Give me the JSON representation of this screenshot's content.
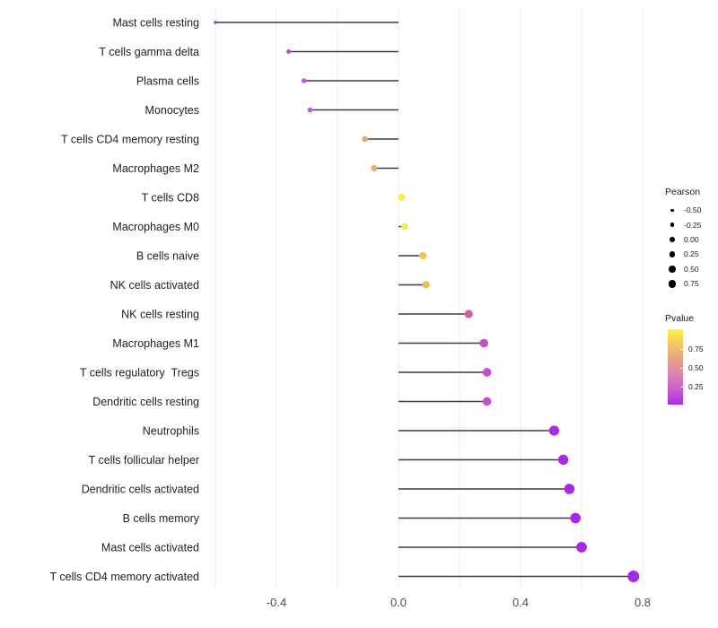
{
  "chart_data": {
    "type": "scatter",
    "variant": "lollipop",
    "title": "",
    "xlabel": "",
    "ylabel": "",
    "xlim": [
      -0.63,
      0.85
    ],
    "x_ticks": [
      -0.4,
      0.0,
      0.4,
      0.8
    ],
    "x_tick_labels": [
      "-0.4",
      "0.0",
      "0.4",
      "0.8"
    ],
    "gridline_positions": [
      -0.6,
      -0.4,
      -0.2,
      0.0,
      0.2,
      0.4,
      0.6,
      0.8
    ],
    "grid": "vertical-only",
    "legend_position": "right",
    "size_encoding": "Pearson correlation",
    "color_encoding": "Pvalue",
    "points": [
      {
        "label": "Mast cells resting",
        "pearson": -0.6,
        "color": "#A12BE8"
      },
      {
        "label": "T cells gamma delta",
        "pearson": -0.36,
        "color": "#B54FD2"
      },
      {
        "label": "Plasma cells",
        "pearson": -0.31,
        "color": "#BC55D6"
      },
      {
        "label": "Monocytes",
        "pearson": -0.29,
        "color": "#C05BD4"
      },
      {
        "label": "T cells CD4 memory resting",
        "pearson": -0.11,
        "color": "#E9A873"
      },
      {
        "label": "Macrophages M2",
        "pearson": -0.08,
        "color": "#EAAC72"
      },
      {
        "label": "T cells CD8",
        "pearson": 0.01,
        "color": "#F6EF3B"
      },
      {
        "label": "Macrophages M0",
        "pearson": 0.02,
        "color": "#F5EE3C"
      },
      {
        "label": "B cells naive",
        "pearson": 0.08,
        "color": "#EFC259"
      },
      {
        "label": "NK cells activated",
        "pearson": 0.09,
        "color": "#EFBD55"
      },
      {
        "label": "NK cells resting",
        "pearson": 0.23,
        "color": "#CB5FA2"
      },
      {
        "label": "Macrophages M1",
        "pearson": 0.28,
        "color": "#C450C9"
      },
      {
        "label": "T cells regulatory  Tregs",
        "pearson": 0.29,
        "color": "#C450C9"
      },
      {
        "label": "Dendritic cells resting",
        "pearson": 0.29,
        "color": "#C450C9"
      },
      {
        "label": "Neutrophils",
        "pearson": 0.51,
        "color": "#A62BE8"
      },
      {
        "label": "T cells follicular helper",
        "pearson": 0.54,
        "color": "#A62BE8"
      },
      {
        "label": "Dendritic cells activated",
        "pearson": 0.56,
        "color": "#A62BE8"
      },
      {
        "label": "B cells memory",
        "pearson": 0.58,
        "color": "#A62BE8"
      },
      {
        "label": "Mast cells activated",
        "pearson": 0.6,
        "color": "#A62BE8"
      },
      {
        "label": "T cells CD4 memory activated",
        "pearson": 0.77,
        "color": "#A62BE8"
      }
    ]
  },
  "legend_pearson": {
    "title": "Pearson",
    "entries": [
      {
        "label": "-0.50",
        "value": -0.5
      },
      {
        "label": "-0.25",
        "value": -0.25
      },
      {
        "label": "0.00",
        "value": 0.0
      },
      {
        "label": "0.25",
        "value": 0.25
      },
      {
        "label": "0.50",
        "value": 0.5
      },
      {
        "label": "0.75",
        "value": 0.75
      }
    ]
  },
  "legend_pvalue": {
    "title": "Pvalue",
    "tick_labels": [
      "0.75",
      "0.50",
      "0.25"
    ],
    "gradient_stops": [
      "#FCF33E",
      "#F2C667",
      "#E8A383",
      "#DC83B2",
      "#CB5DCC",
      "#A92BE9"
    ]
  },
  "colors": {
    "gridline": "#ececec",
    "stem": "#3d3d3d",
    "axis_text": "#4a4a4a",
    "label_text": "#1f1f1f"
  }
}
